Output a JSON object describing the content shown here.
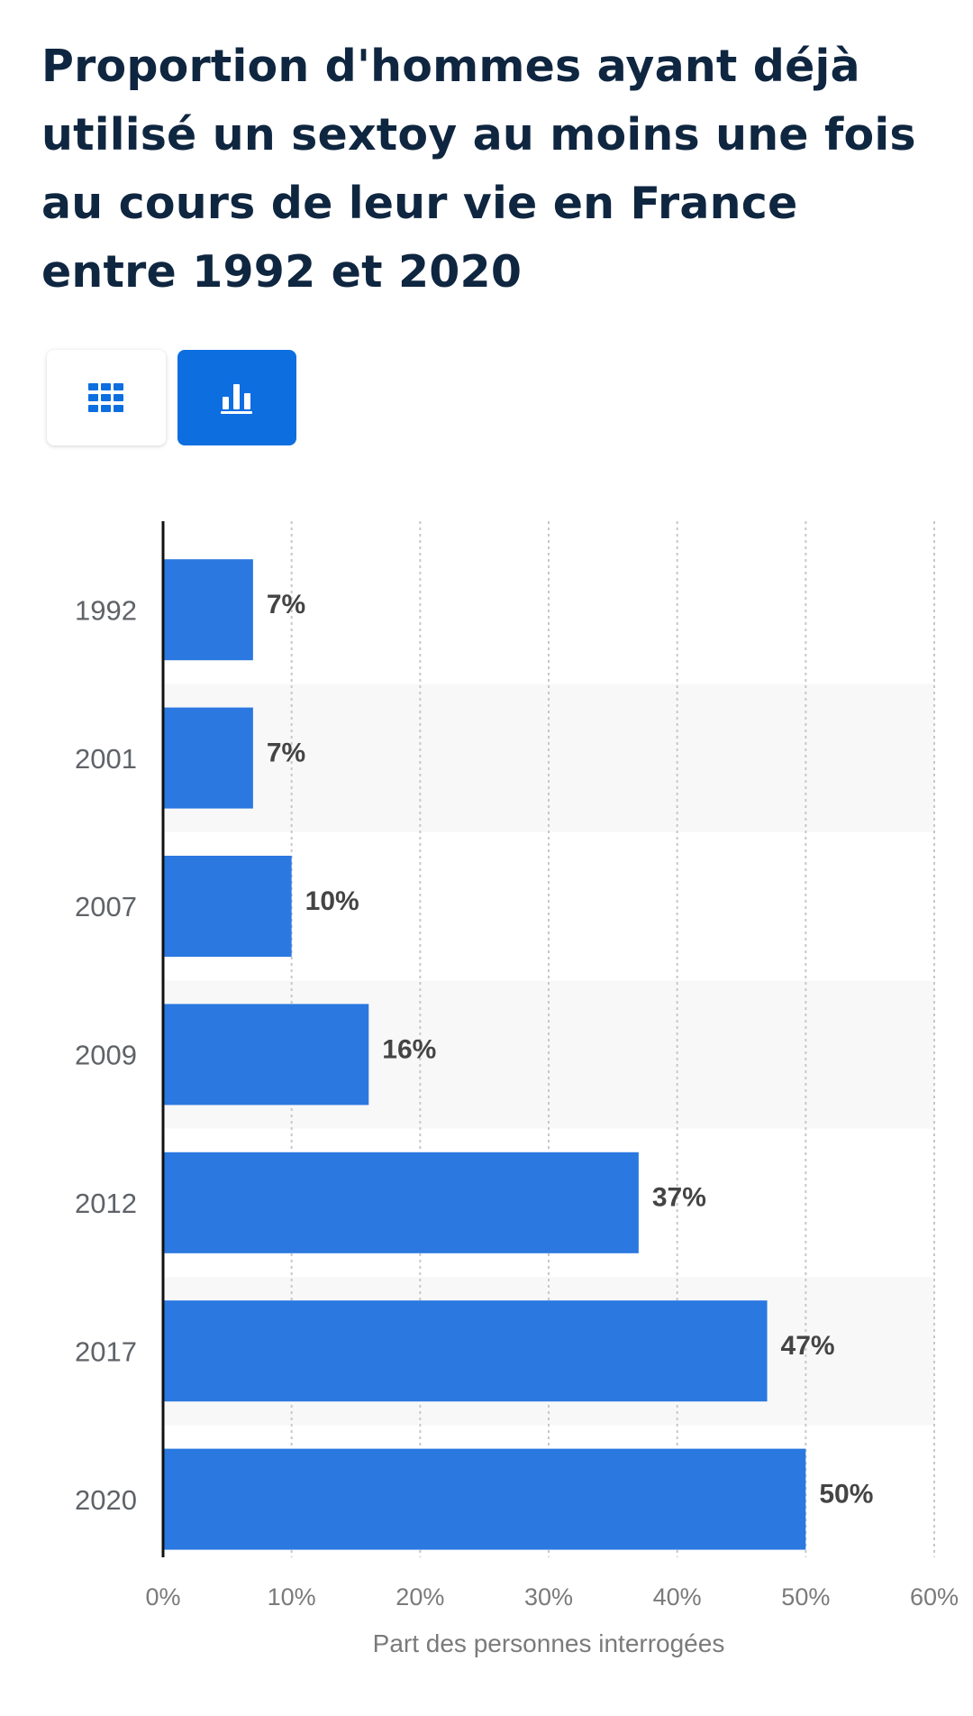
{
  "title": "Proportion d'hommes ayant déjà utilisé un sextoy au moins une fois au cours de leur vie en France entre 1992 et 2020",
  "view_toggle": {
    "table_icon": "table-grid-icon",
    "chart_icon": "bar-chart-icon",
    "active": "chart"
  },
  "colors": {
    "bar": "#2a78e0",
    "active_toggle": "#0d6ee0",
    "title": "#0f2640",
    "band": "#f8f8f8"
  },
  "chart_data": {
    "type": "bar",
    "orientation": "horizontal",
    "categories": [
      "1992",
      "2001",
      "2007",
      "2009",
      "2012",
      "2017",
      "2020"
    ],
    "values": [
      7,
      7,
      10,
      16,
      37,
      47,
      50
    ],
    "value_labels": [
      "7%",
      "7%",
      "10%",
      "16%",
      "37%",
      "47%",
      "50%"
    ],
    "xlabel": "Part des personnes interrogées",
    "ylabel": "",
    "xlim": [
      0,
      60
    ],
    "ticks": [
      0,
      10,
      20,
      30,
      40,
      50,
      60
    ],
    "tick_labels": [
      "0%",
      "10%",
      "20%",
      "30%",
      "40%",
      "50%",
      "60%"
    ],
    "grid": true
  }
}
